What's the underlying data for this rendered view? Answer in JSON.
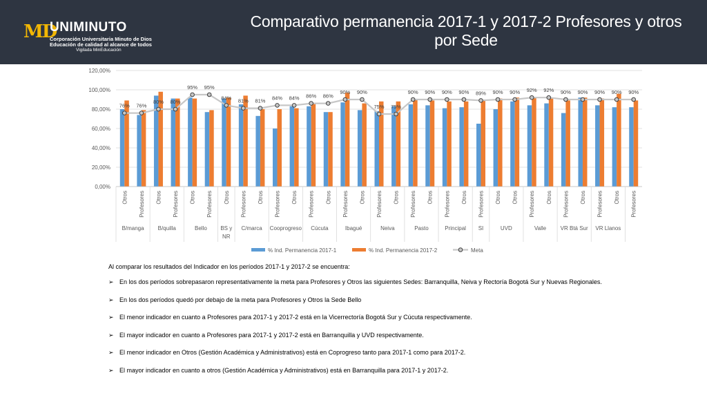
{
  "header": {
    "logo": {
      "mark": "MD",
      "name": "UNIMINUTO",
      "line1": "Corporación Universitaria Minuto de Dios",
      "line2": "Educación de calidad al alcance de todos",
      "line3": "Vigilada MinEducación"
    },
    "title_line1": "Comparativo permanencia 2017-1 y 2017-2 Profesores y otros",
    "title_line2": "por Sede"
  },
  "colors": {
    "series1": "#5b9bd5",
    "series2": "#ed7d31",
    "meta": "#c7c7c7",
    "header_bg": "#2e3541",
    "logo_accent": "#f2b705"
  },
  "chart_data": {
    "type": "bar",
    "ylim": [
      0,
      120
    ],
    "yticks": [
      "0,00%",
      "20,00%",
      "40,00%",
      "60,00%",
      "80,00%",
      "100,00%",
      "120,00%"
    ],
    "grid": true,
    "legend_position": "bottom",
    "categories": [
      "Otros",
      "Profesores",
      "Otros",
      "Profesores",
      "Otros",
      "Profesores",
      "Otros",
      "Profesores",
      "Otros",
      "Profesores",
      "Otros",
      "Profesores",
      "Otros",
      "Profesores",
      "Otros",
      "Profesores",
      "Otros",
      "Profesores",
      "Otros",
      "Profesores",
      "Otros",
      "Profesores",
      "Otros",
      "Otros",
      "Profesores",
      "Otros",
      "Profesores",
      "Otros",
      "Profesores",
      "Otros",
      "Profesores"
    ],
    "groups": [
      {
        "label": "B/manga",
        "count": 2
      },
      {
        "label": "B/quilla",
        "count": 2
      },
      {
        "label": "Bello",
        "count": 2
      },
      {
        "label": "BS y NR",
        "count": 1
      },
      {
        "label": "C/marca",
        "count": 2
      },
      {
        "label": "Cooprogreso",
        "count": 2
      },
      {
        "label": "Cúcuta",
        "count": 2
      },
      {
        "label": "Ibagué",
        "count": 2
      },
      {
        "label": "Neiva",
        "count": 2
      },
      {
        "label": "Pasto",
        "count": 2
      },
      {
        "label": "Principal",
        "count": 2
      },
      {
        "label": "SI",
        "count": 1
      },
      {
        "label": "UVD",
        "count": 2
      },
      {
        "label": "Valle",
        "count": 2
      },
      {
        "label": "VR Btá Sur",
        "count": 2
      },
      {
        "label": "VR Llanos",
        "count": 2
      }
    ],
    "series": [
      {
        "name": "% Ind. Permanencia 2017-1",
        "values": [
          80,
          74,
          94,
          91,
          92,
          77,
          91,
          85,
          73,
          60,
          83,
          83,
          77,
          87,
          79,
          78,
          83,
          85,
          84,
          81,
          82,
          65,
          80,
          88,
          84,
          86,
          76,
          92,
          84,
          82,
          82
        ]
      },
      {
        "name": "% Ind. Permanencia 2017-2",
        "values": [
          89,
          79,
          98,
          91,
          91,
          79,
          92,
          94,
          80,
          80,
          81,
          86,
          77,
          97,
          86,
          88,
          88,
          90,
          89,
          88,
          88,
          90,
          91,
          92,
          92,
          91,
          89,
          92,
          91,
          96,
          89
        ]
      },
      {
        "name": "Meta",
        "values": [
          76,
          76,
          80,
          80,
          95,
          95,
          84,
          81,
          81,
          84,
          84,
          86,
          86,
          90,
          90,
          75,
          75,
          90,
          90,
          90,
          90,
          89,
          90,
          90,
          92,
          92,
          90,
          90,
          90,
          90,
          90
        ]
      }
    ],
    "meta_labels": [
      "76%",
      "76%",
      "80%",
      "80%",
      "95%",
      "95%",
      "84%",
      "81%",
      "81%",
      "84%",
      "84%",
      "86%",
      "86%",
      "90%",
      "90%",
      "75%",
      "75%",
      "90%",
      "90%",
      "90%",
      "90%",
      "89%",
      "90%",
      "90%",
      "92%",
      "92%",
      "90%",
      "90%",
      "90%",
      "90%",
      "90%"
    ]
  },
  "body": {
    "intro": "Al comparar los resultados del Indicador en los períodos 2017-1 y 2017-2 se encuentra:",
    "bullet_glyph": "➢",
    "bullets": [
      "En los dos períodos sobrepasaron representativamente la meta para Profesores y Otros las siguientes Sedes: Barranquilla, Neiva y Rectoría Bogotá Sur y Nuevas Regionales.",
      "En los dos períodos quedó por debajo de la meta para Profesores y Otros la Sede Bello",
      "El menor indicador en cuanto a Profesores para 2017-1 y 2017-2  está en la Vicerrectoría Bogotá Sur y Cúcuta respectivamente.",
      "El mayor indicador en cuanto a Profesores para 2017-1 y 2017-2 está en Barranquilla y UVD respectivamente.",
      "El menor indicador en Otros (Gestión Académica y Administrativos) está en Coprogreso tanto para 2017-1 como para 2017-2.",
      "El mayor indicador  en cuanto a otros (Gestión Académica y Administrativos) está en Barranquilla para 2017-1 y 2017-2."
    ]
  }
}
